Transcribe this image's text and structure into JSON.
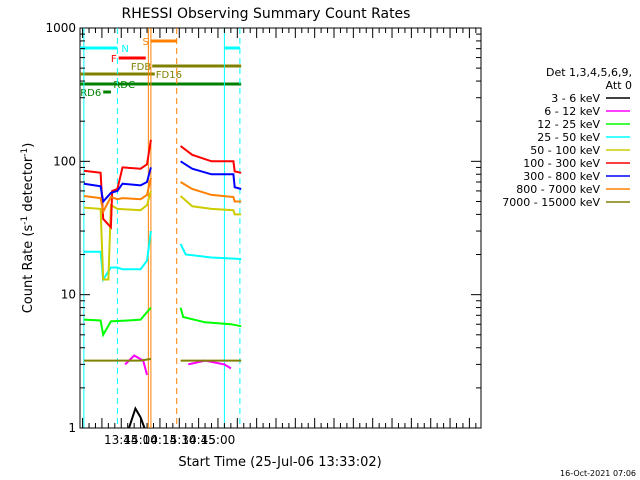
{
  "chart_data": {
    "type": "line",
    "title": "RHESSI Observing Summary Count Rates",
    "xlabel": "Start Time (25-Jul-06 13:33:02)",
    "ylabel_main": "Count Rate (s",
    "ylabel_sup1": "-1",
    "ylabel_mid": " detector",
    "ylabel_sup2": "-1",
    "ylabel_end": ")",
    "yscale": "log",
    "ylim": [
      1,
      1000
    ],
    "xlim_minutes": [
      793,
      1104
    ],
    "x_ticks": [
      {
        "label": "13:45",
        "minute": 825
      },
      {
        "label": "14:00",
        "minute": 840
      },
      {
        "label": "14:15",
        "minute": 855
      },
      {
        "label": "14:30",
        "minute": 870
      },
      {
        "label": "14:45",
        "minute": 885
      },
      {
        "label": "15:00",
        "minute": 900
      }
    ],
    "y_ticks": [
      {
        "label": "1",
        "value": 1
      },
      {
        "label": "10",
        "value": 10
      },
      {
        "label": "100",
        "value": 100
      },
      {
        "label": "1000",
        "value": 1000
      }
    ],
    "legend_title": [
      "Det 1,3,4,5,6,9,",
      "Att 0"
    ],
    "legend_position": "right",
    "series": [
      {
        "name": "3 - 6 keV",
        "color": "#000000",
        "segments": [
          [
            [
              831,
              1
            ],
            [
              836,
              1.4
            ],
            [
              840,
              1.2
            ],
            [
              843,
              1
            ]
          ]
        ]
      },
      {
        "name": "6 - 12 keV",
        "color": "#ff00ff",
        "segments": [
          [
            [
              828,
              3.0
            ],
            [
              835,
              3.5
            ],
            [
              842,
              3.2
            ],
            [
              845,
              2.5
            ]
          ],
          [
            [
              877,
              3.0
            ],
            [
              890,
              3.2
            ],
            [
              905,
              3.0
            ],
            [
              910,
              2.8
            ]
          ]
        ]
      },
      {
        "name": "12 - 25 keV",
        "color": "#00ff00",
        "segments": [
          [
            [
              796,
              6.5
            ],
            [
              809,
              6.4
            ],
            [
              811,
              5.0
            ],
            [
              817,
              6.3
            ],
            [
              830,
              6.4
            ],
            [
              840,
              6.5
            ],
            [
              848,
              8.0
            ]
          ],
          [
            [
              871,
              8.0
            ],
            [
              873,
              6.8
            ],
            [
              890,
              6.2
            ],
            [
              910,
              6.0
            ],
            [
              918,
              5.8
            ]
          ]
        ]
      },
      {
        "name": "25 - 50 keV",
        "color": "#00ffff",
        "segments": [
          [
            [
              796,
              21
            ],
            [
              809,
              21
            ],
            [
              811,
              13
            ],
            [
              817,
              16
            ],
            [
              818,
              16
            ],
            [
              820,
              16
            ],
            [
              822,
              16
            ],
            [
              826,
              15.5
            ],
            [
              840,
              15.5
            ],
            [
              845,
              18
            ],
            [
              848,
              30
            ]
          ],
          [
            [
              871,
              24
            ],
            [
              875,
              20
            ],
            [
              895,
              19
            ],
            [
              918,
              18.5
            ]
          ]
        ]
      },
      {
        "name": "50 - 100 keV",
        "color": "#cccc00",
        "segments": [
          [
            [
              796,
              45
            ],
            [
              809,
              44
            ],
            [
              811,
              13
            ],
            [
              815,
              13
            ],
            [
              817,
              47
            ],
            [
              822,
              44
            ],
            [
              840,
              43
            ],
            [
              845,
              47
            ],
            [
              848,
              60
            ]
          ],
          [
            [
              871,
              55
            ],
            [
              880,
              46
            ],
            [
              895,
              44
            ],
            [
              912,
              43
            ],
            [
              913,
              40
            ],
            [
              918,
              40
            ]
          ]
        ]
      },
      {
        "name": "100 - 300 keV",
        "color": "#ff0000",
        "segments": [
          [
            [
              796,
              85
            ],
            [
              809,
              82
            ],
            [
              811,
              37
            ],
            [
              817,
              32
            ],
            [
              818,
              60
            ],
            [
              822,
              62
            ],
            [
              826,
              90
            ],
            [
              840,
              88
            ],
            [
              845,
              95
            ],
            [
              848,
              145
            ]
          ],
          [
            [
              871,
              130
            ],
            [
              880,
              112
            ],
            [
              895,
              100
            ],
            [
              912,
              100
            ],
            [
              913,
              84
            ],
            [
              918,
              82
            ]
          ]
        ]
      },
      {
        "name": "300 - 800 keV",
        "color": "#0000ff",
        "segments": [
          [
            [
              796,
              68
            ],
            [
              809,
              65
            ],
            [
              811,
              50
            ],
            [
              817,
              58
            ],
            [
              822,
              60
            ],
            [
              826,
              68
            ],
            [
              840,
              66
            ],
            [
              845,
              70
            ],
            [
              848,
              90
            ]
          ],
          [
            [
              871,
              100
            ],
            [
              880,
              88
            ],
            [
              895,
              80
            ],
            [
              912,
              80
            ],
            [
              913,
              64
            ],
            [
              918,
              62
            ]
          ]
        ]
      },
      {
        "name": "800 - 7000 keV",
        "color": "#ff8000",
        "segments": [
          [
            [
              796,
              55
            ],
            [
              809,
              53
            ],
            [
              811,
              42
            ],
            [
              817,
              54
            ],
            [
              822,
              52
            ],
            [
              826,
              53
            ],
            [
              840,
              52
            ],
            [
              845,
              56
            ],
            [
              848,
              75
            ]
          ],
          [
            [
              871,
              70
            ],
            [
              880,
              62
            ],
            [
              895,
              56
            ],
            [
              912,
              54
            ],
            [
              913,
              50
            ],
            [
              918,
              50
            ]
          ]
        ]
      },
      {
        "name": "7000 - 15000 keV",
        "color": "#808000",
        "segments": [
          [
            [
              796,
              3.2
            ],
            [
              818,
              3.2
            ],
            [
              840,
              3.2
            ],
            [
              848,
              3.3
            ]
          ],
          [
            [
              871,
              3.2
            ],
            [
              890,
              3.2
            ],
            [
              918,
              3.2
            ]
          ]
        ]
      }
    ],
    "state_bars": [
      {
        "label": "N",
        "color": "#00ffff",
        "start": 793,
        "end": 822,
        "row": 0
      },
      {
        "label": "",
        "color": "#00ffff",
        "start": 905,
        "end": 917,
        "row": 0
      },
      {
        "label": "F",
        "color": "#ff0000",
        "start": 823,
        "end": 844,
        "row": 1
      },
      {
        "label": "S",
        "color": "#ff8000",
        "start": 848,
        "end": 868,
        "row": 2
      },
      {
        "label": "FDB",
        "color": "#808000",
        "start": 849,
        "end": 918,
        "row": 3
      },
      {
        "label": "FD16",
        "color": "#808000",
        "start": 793,
        "end": 851,
        "row": 4
      },
      {
        "label": "RDC",
        "color": "#008000",
        "start": 793,
        "end": 918,
        "row": 5
      },
      {
        "label": "RD6",
        "color": "#008000",
        "start": 811,
        "end": 817,
        "row": 6
      }
    ],
    "vertical_lines": [
      {
        "color": "#00ffff",
        "minute": 796,
        "dashed": false
      },
      {
        "color": "#00ffff",
        "minute": 822,
        "dashed": true
      },
      {
        "color": "#ff8000",
        "minute": 846,
        "dashed": false
      },
      {
        "color": "#ff8000",
        "minute": 848,
        "dashed": false
      },
      {
        "color": "#ff8000",
        "minute": 868,
        "dashed": true
      },
      {
        "color": "#00ffff",
        "minute": 905,
        "dashed": false
      },
      {
        "color": "#00ffff",
        "minute": 917,
        "dashed": true
      }
    ],
    "timestamp": "16-Oct-2021 07:06"
  }
}
